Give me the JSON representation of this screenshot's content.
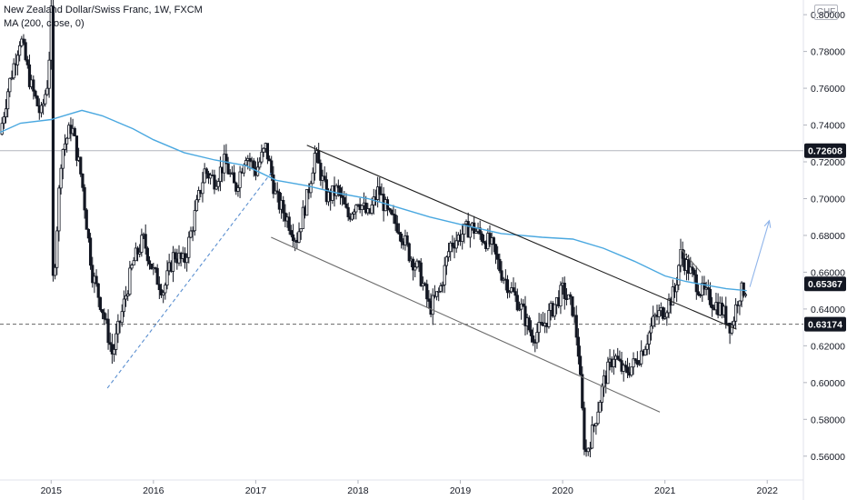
{
  "header": {
    "symbol_line": "New Zealand Dollar/Swiss Franc, 1W, FXCM",
    "indicator_line": "MA (200, close, 0)",
    "currency": "CHF"
  },
  "colors": {
    "candle": "#131722",
    "ma": "#4aa8e0",
    "trendline": "#1e1e1e",
    "channel_lower": "#6b6b6b",
    "support_dashed": "#5a8fd0",
    "projection": "#8fb4ea",
    "hline": "#b2b5be",
    "axis_text": "#131722",
    "price_label_bg": "#131722",
    "price_label_text": "#ffffff"
  },
  "chart_data": {
    "type": "candlestick",
    "ylim": [
      0.55,
      0.806
    ],
    "xlim": [
      2014.5,
      2022.3
    ],
    "y_ticks": [
      "0.56000",
      "0.58000",
      "0.60000",
      "0.62000",
      "0.64000",
      "0.66000",
      "0.68000",
      "0.70000",
      "0.72000",
      "0.74000",
      "0.76000",
      "0.78000",
      "0.80000"
    ],
    "y_tick_values": [
      0.56,
      0.58,
      0.6,
      0.62,
      0.64,
      0.66,
      0.68,
      0.7,
      0.72,
      0.74,
      0.76,
      0.78,
      0.8
    ],
    "x_ticks": [
      "2015",
      "2016",
      "2017",
      "2018",
      "2019",
      "2020",
      "2021",
      "2022"
    ],
    "x_tick_values": [
      2015,
      2016,
      2017,
      2018,
      2019,
      2020,
      2021,
      2022
    ],
    "price_labels": [
      {
        "value": 0.72608,
        "text": "0.72608"
      },
      {
        "value": 0.65367,
        "text": "0.65367"
      },
      {
        "value": 0.63174,
        "text": "0.63174"
      }
    ],
    "horizontal_lines": [
      {
        "value": 0.72608,
        "style": "solid"
      },
      {
        "value": 0.63174,
        "style": "dashed"
      }
    ],
    "price_path": [
      [
        2014.5,
        0.735
      ],
      [
        2014.58,
        0.76
      ],
      [
        2014.7,
        0.788
      ],
      [
        2014.8,
        0.762
      ],
      [
        2014.9,
        0.745
      ],
      [
        2014.97,
        0.765
      ],
      [
        2015.0,
        0.8
      ],
      [
        2015.02,
        0.65
      ],
      [
        2015.1,
        0.725
      ],
      [
        2015.2,
        0.74
      ],
      [
        2015.3,
        0.71
      ],
      [
        2015.4,
        0.66
      ],
      [
        2015.5,
        0.64
      ],
      [
        2015.6,
        0.615
      ],
      [
        2015.7,
        0.64
      ],
      [
        2015.8,
        0.665
      ],
      [
        2015.9,
        0.678
      ],
      [
        2016.0,
        0.66
      ],
      [
        2016.1,
        0.65
      ],
      [
        2016.2,
        0.67
      ],
      [
        2016.3,
        0.665
      ],
      [
        2016.4,
        0.69
      ],
      [
        2016.5,
        0.715
      ],
      [
        2016.6,
        0.71
      ],
      [
        2016.7,
        0.72
      ],
      [
        2016.8,
        0.705
      ],
      [
        2016.9,
        0.725
      ],
      [
        2017.0,
        0.715
      ],
      [
        2017.1,
        0.728
      ],
      [
        2017.2,
        0.7
      ],
      [
        2017.3,
        0.69
      ],
      [
        2017.4,
        0.678
      ],
      [
        2017.5,
        0.7
      ],
      [
        2017.58,
        0.725
      ],
      [
        2017.7,
        0.7
      ],
      [
        2017.8,
        0.705
      ],
      [
        2017.9,
        0.69
      ],
      [
        2018.0,
        0.7
      ],
      [
        2018.1,
        0.69
      ],
      [
        2018.2,
        0.705
      ],
      [
        2018.3,
        0.69
      ],
      [
        2018.4,
        0.685
      ],
      [
        2018.5,
        0.67
      ],
      [
        2018.6,
        0.66
      ],
      [
        2018.7,
        0.64
      ],
      [
        2018.8,
        0.65
      ],
      [
        2018.9,
        0.675
      ],
      [
        2019.0,
        0.68
      ],
      [
        2019.1,
        0.685
      ],
      [
        2019.2,
        0.68
      ],
      [
        2019.3,
        0.675
      ],
      [
        2019.4,
        0.66
      ],
      [
        2019.5,
        0.65
      ],
      [
        2019.6,
        0.64
      ],
      [
        2019.7,
        0.625
      ],
      [
        2019.8,
        0.63
      ],
      [
        2019.9,
        0.64
      ],
      [
        2020.0,
        0.65
      ],
      [
        2020.1,
        0.64
      ],
      [
        2020.15,
        0.62
      ],
      [
        2020.22,
        0.56
      ],
      [
        2020.3,
        0.575
      ],
      [
        2020.4,
        0.6
      ],
      [
        2020.5,
        0.615
      ],
      [
        2020.6,
        0.605
      ],
      [
        2020.7,
        0.61
      ],
      [
        2020.8,
        0.62
      ],
      [
        2020.9,
        0.635
      ],
      [
        2021.0,
        0.64
      ],
      [
        2021.1,
        0.65
      ],
      [
        2021.15,
        0.67
      ],
      [
        2021.25,
        0.66
      ],
      [
        2021.35,
        0.65
      ],
      [
        2021.45,
        0.645
      ],
      [
        2021.55,
        0.64
      ],
      [
        2021.65,
        0.63
      ],
      [
        2021.72,
        0.648
      ],
      [
        2021.8,
        0.652
      ]
    ],
    "moving_average": [
      [
        2014.5,
        0.736
      ],
      [
        2014.7,
        0.741
      ],
      [
        2015.0,
        0.743
      ],
      [
        2015.3,
        0.748
      ],
      [
        2015.5,
        0.745
      ],
      [
        2015.8,
        0.738
      ],
      [
        2016.0,
        0.732
      ],
      [
        2016.3,
        0.725
      ],
      [
        2016.6,
        0.721
      ],
      [
        2016.9,
        0.718
      ],
      [
        2017.2,
        0.71
      ],
      [
        2017.5,
        0.707
      ],
      [
        2017.8,
        0.703
      ],
      [
        2018.1,
        0.7
      ],
      [
        2018.4,
        0.695
      ],
      [
        2018.7,
        0.69
      ],
      [
        2019.0,
        0.686
      ],
      [
        2019.4,
        0.681
      ],
      [
        2019.8,
        0.679
      ],
      [
        2020.1,
        0.678
      ],
      [
        2020.4,
        0.673
      ],
      [
        2020.7,
        0.666
      ],
      [
        2021.0,
        0.658
      ],
      [
        2021.2,
        0.655
      ],
      [
        2021.4,
        0.653
      ],
      [
        2021.6,
        0.651
      ],
      [
        2021.8,
        0.65
      ]
    ],
    "drawings": [
      {
        "name": "channel-upper-trendline",
        "kind": "line",
        "style": "solid",
        "color_key": "trendline",
        "from": [
          2017.5,
          0.729
        ],
        "to": [
          2021.7,
          0.629
        ]
      },
      {
        "name": "channel-lower-trendline",
        "kind": "line",
        "style": "solid",
        "color_key": "channel_lower",
        "from": [
          2017.15,
          0.679
        ],
        "to": [
          2020.95,
          0.584
        ]
      },
      {
        "name": "support-dashed-trendline",
        "kind": "line",
        "style": "dashed",
        "color_key": "support_dashed",
        "from": [
          2015.55,
          0.597
        ],
        "to": [
          2017.15,
          0.714
        ]
      },
      {
        "name": "flag-upper-trendline",
        "kind": "line",
        "style": "solid",
        "color_key": "channel_lower",
        "from": [
          2021.15,
          0.673
        ],
        "to": [
          2021.35,
          0.66
        ]
      },
      {
        "name": "projection-arrow",
        "kind": "arrow",
        "style": "solid",
        "color_key": "projection",
        "from": [
          2021.83,
          0.652
        ],
        "to": [
          2022.02,
          0.688
        ]
      }
    ]
  }
}
